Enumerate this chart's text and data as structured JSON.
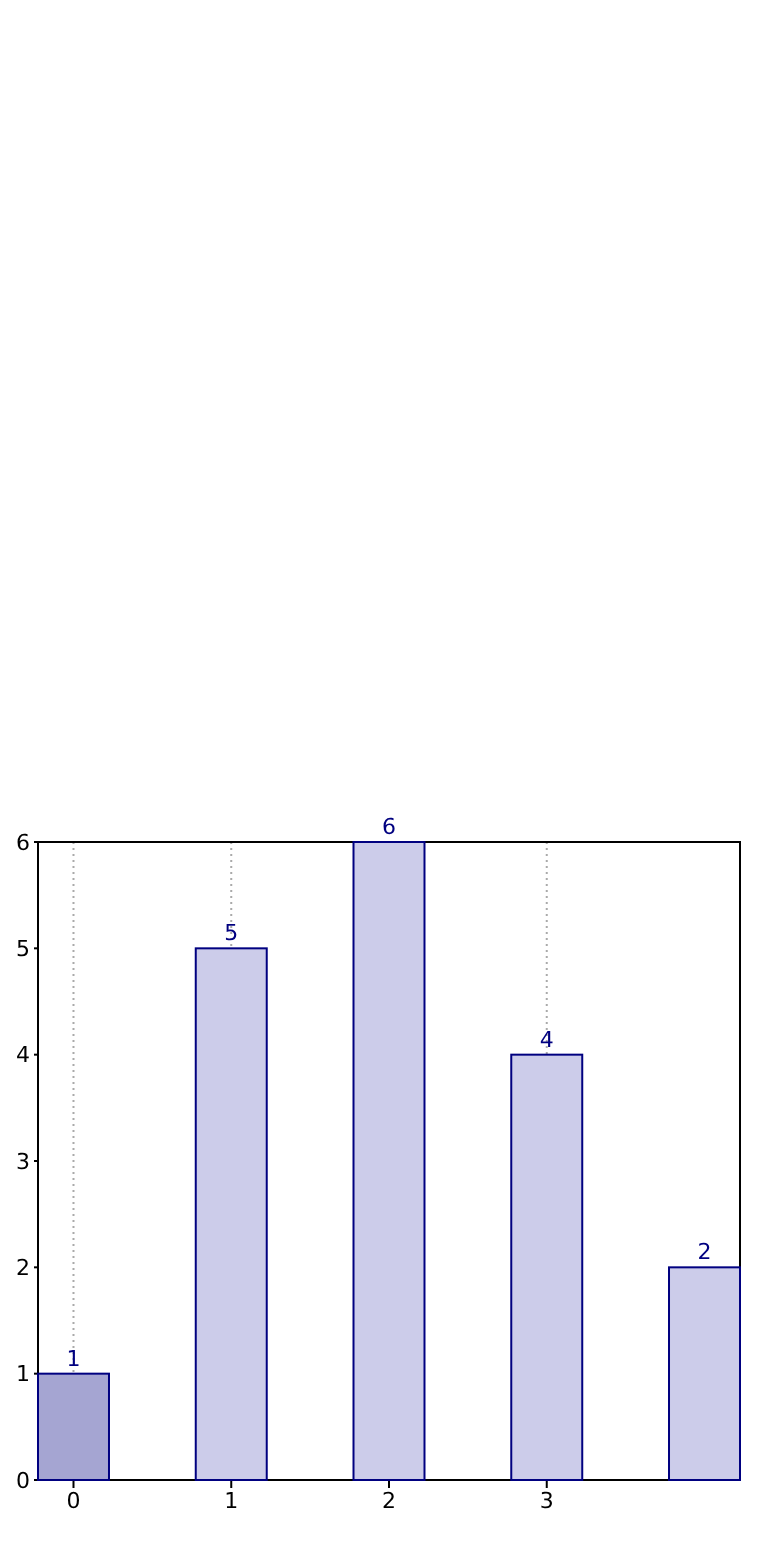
{
  "chart_data": {
    "type": "bar",
    "x": [
      0,
      1,
      2,
      3,
      4
    ],
    "values": [
      1,
      5,
      6,
      4,
      2
    ],
    "colors": [
      "#a5a5d2",
      "#ccccea",
      "#ccccea",
      "#ccccea",
      "#ccccea"
    ],
    "xlim": [
      -0.225,
      4.225
    ],
    "xticks": [
      0,
      1,
      2,
      3
    ],
    "ylim": [
      0,
      6
    ],
    "yticks": [
      0,
      1,
      2,
      3,
      4,
      5,
      6
    ],
    "grid": "x",
    "data_labels": true
  }
}
